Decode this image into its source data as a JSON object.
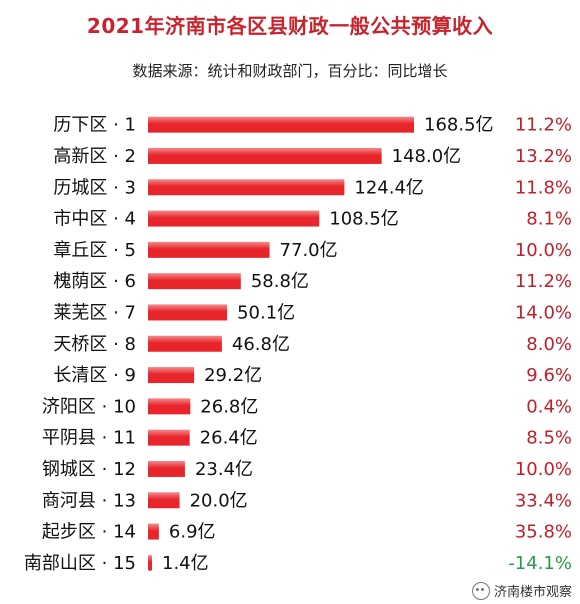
{
  "chart_data": {
    "type": "bar",
    "orientation": "horizontal",
    "title": "2021年济南市各区县财政一般公共预算收入",
    "subtitle": "数据来源：统计和财政部门，百分比：同比增长",
    "categories": [
      "历下区 · 1",
      "高新区 · 2",
      "历城区 · 3",
      "市中区 · 4",
      "章丘区 · 5",
      "槐荫区 · 6",
      "莱芜区 · 7",
      "天桥区 · 8",
      "长清区 · 9",
      "济阳区 · 10",
      "平阴县 · 11",
      "钢城区 · 12",
      "商河县 · 13",
      "起步区 · 14",
      "南部山区 · 15"
    ],
    "values": [
      168.5,
      148.0,
      124.4,
      108.5,
      77.0,
      58.8,
      50.1,
      46.8,
      29.2,
      26.8,
      26.4,
      23.4,
      20.0,
      6.9,
      1.4
    ],
    "value_labels": [
      "168.5亿",
      "148.0亿",
      "124.4亿",
      "108.5亿",
      "77.0亿",
      "58.8亿",
      "50.1亿",
      "46.8亿",
      "29.2亿",
      "26.8亿",
      "26.4亿",
      "23.4亿",
      "20.0亿",
      "6.9亿",
      "1.4亿"
    ],
    "growth": [
      11.2,
      13.2,
      11.8,
      8.1,
      10.0,
      11.2,
      14.0,
      8.0,
      9.6,
      0.4,
      8.5,
      10.0,
      33.4,
      35.8,
      -14.1
    ],
    "growth_labels": [
      "11.2%",
      "13.2%",
      "11.8%",
      "8.1%",
      "10.0%",
      "11.2%",
      "14.0%",
      "8.0%",
      "9.6%",
      "0.4%",
      "8.5%",
      "10.0%",
      "33.4%",
      "35.8%",
      "-14.1%"
    ],
    "colors": {
      "bar": "#e8252b",
      "bar_light": "#f48a8d",
      "positive": "#c0202a",
      "negative": "#2a9a4a",
      "title": "#c8232c"
    },
    "grid": false,
    "legend": "none"
  },
  "footer": {
    "text": "济南楼市观察",
    "icon": "wechat-icon"
  }
}
